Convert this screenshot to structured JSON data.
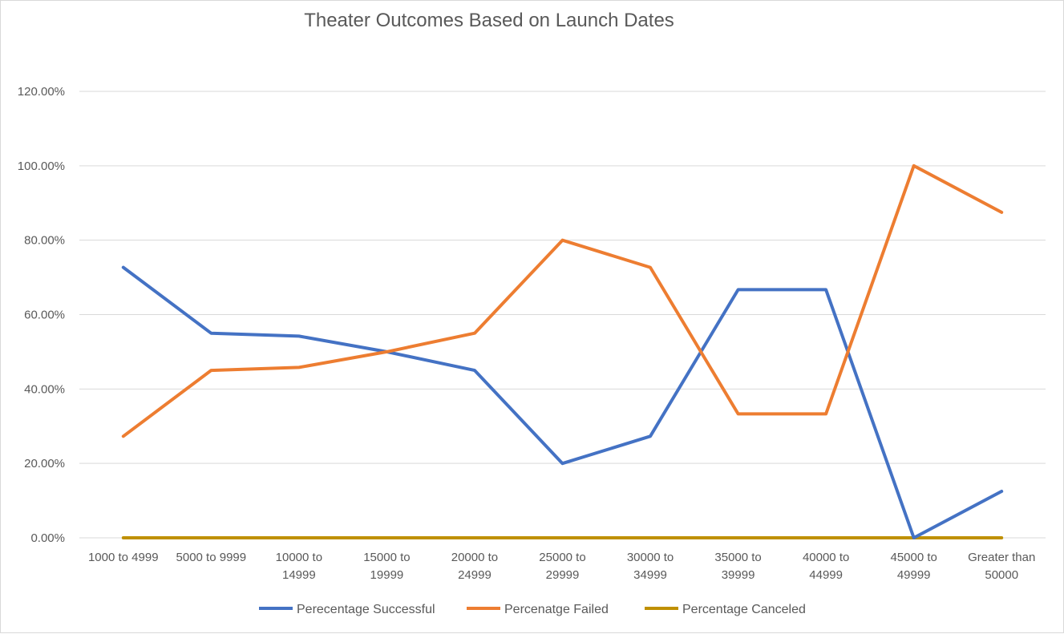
{
  "chart_data": {
    "type": "line",
    "title": "Theater Outcomes Based on Launch Dates",
    "xlabel": "",
    "ylabel": "",
    "categories": [
      [
        "1000 to 4999"
      ],
      [
        "5000 to 9999"
      ],
      [
        "10000 to",
        "14999"
      ],
      [
        "15000 to",
        "19999"
      ],
      [
        "20000 to",
        "24999"
      ],
      [
        "25000 to",
        "29999"
      ],
      [
        "30000 to",
        "34999"
      ],
      [
        "35000 to",
        "39999"
      ],
      [
        "40000 to",
        "44999"
      ],
      [
        "45000 to",
        "49999"
      ],
      [
        "Greater than",
        "50000"
      ]
    ],
    "ylim": [
      0,
      120
    ],
    "yticks": [
      0,
      20,
      40,
      60,
      80,
      100,
      120
    ],
    "ytick_labels": [
      "0.00%",
      "20.00%",
      "40.00%",
      "60.00%",
      "80.00%",
      "100.00%",
      "120.00%"
    ],
    "grid": true,
    "legend_position": "bottom",
    "series": [
      {
        "name": "Perecentage Successful",
        "color": "#4472c4",
        "values": [
          72.7,
          55.0,
          54.2,
          50.0,
          45.0,
          20.0,
          27.3,
          66.7,
          66.7,
          0.0,
          12.5
        ]
      },
      {
        "name": "Percenatge Failed",
        "color": "#ed7d31",
        "values": [
          27.3,
          45.0,
          45.8,
          50.0,
          55.0,
          80.0,
          72.7,
          33.3,
          33.3,
          100.0,
          87.5
        ]
      },
      {
        "name": "Percentage Canceled",
        "color": "#bf9000",
        "values": [
          0,
          0,
          0,
          0,
          0,
          0,
          0,
          0,
          0,
          0,
          0
        ]
      }
    ]
  }
}
